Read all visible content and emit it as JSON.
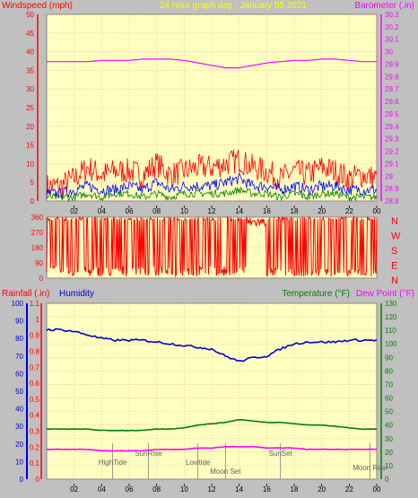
{
  "header": {
    "left_label": "Windspeed (mph)",
    "center_label": "24 hour graph day : January 05 2021",
    "right_label": "Barometer (.in)"
  },
  "lower_header": {
    "rain_label": "Rainfall (.in)",
    "humidity_label": "Humidity",
    "temperature_label": "Temperature (°F)",
    "dewpoint_label": "Dew Point (°F)"
  },
  "colors": {
    "plot_bg": "#ffffc0",
    "grid": "#ff9a9a",
    "axis_red": "#ff0000",
    "barometer": "#ff00ff",
    "humidity": "#0000cc",
    "temperature": "#008000",
    "dewpoint": "#ff00ff",
    "gust": "#ff0000",
    "average": "#0000ff",
    "lull": "#008000"
  },
  "x_ticks": [
    "02",
    "04",
    "06",
    "08",
    "10",
    "12",
    "14",
    "16",
    "18",
    "20",
    "22",
    "00"
  ],
  "chart_data": [
    {
      "type": "line",
      "title": "24 hour graph day : January 05 2021",
      "x_hours": [
        0,
        1,
        2,
        3,
        4,
        5,
        6,
        7,
        8,
        9,
        10,
        11,
        12,
        13,
        14,
        15,
        16,
        17,
        18,
        19,
        20,
        21,
        22,
        23,
        24
      ],
      "series": [
        {
          "name": "Windspeed (mph)",
          "axis": "left",
          "ylim": [
            0,
            50
          ],
          "gust_peak": [
            4,
            4,
            6,
            9,
            7,
            8,
            8,
            7,
            10,
            7,
            8,
            9,
            9,
            10,
            11,
            9,
            8,
            6,
            8,
            7,
            9,
            8,
            6,
            7,
            6
          ],
          "average": [
            2,
            2,
            3,
            4,
            3,
            3,
            4,
            3,
            5,
            3,
            4,
            4,
            4,
            5,
            6,
            4,
            4,
            3,
            4,
            3,
            4,
            4,
            3,
            3,
            3
          ],
          "lull": [
            1,
            1,
            1,
            2,
            1,
            2,
            2,
            1,
            2,
            1,
            2,
            2,
            2,
            2,
            3,
            2,
            2,
            1,
            2,
            1,
            2,
            2,
            1,
            1,
            1
          ]
        },
        {
          "name": "Barometer (.in)",
          "axis": "right",
          "ylim": [
            28.8,
            30.3
          ],
          "values": [
            29.92,
            29.92,
            29.92,
            29.92,
            29.93,
            29.93,
            29.93,
            29.94,
            29.94,
            29.94,
            29.93,
            29.91,
            29.89,
            29.87,
            29.87,
            29.89,
            29.91,
            29.92,
            29.93,
            29.93,
            29.94,
            29.94,
            29.93,
            29.92,
            29.92
          ]
        }
      ],
      "left_ticks": [
        "0",
        "5",
        "10",
        "15",
        "20",
        "25",
        "30",
        "35",
        "40",
        "45",
        "50"
      ],
      "right_ticks": [
        "28.8",
        "28.9",
        "29",
        "29.1",
        "29.2",
        "29.3",
        "29.4",
        "29.5",
        "29.6",
        "29.7",
        "29.8",
        "29.9",
        "30",
        "30.1",
        "30.2",
        "30.3"
      ]
    },
    {
      "type": "line",
      "name": "Wind direction",
      "ylim": [
        0,
        360
      ],
      "y_ticks": [
        "0",
        "90",
        "180",
        "270",
        "360"
      ],
      "direction_labels": [
        "N",
        "W",
        "S",
        "E",
        "N"
      ]
    },
    {
      "type": "line",
      "x_hours": [
        0,
        1,
        2,
        3,
        4,
        5,
        6,
        7,
        8,
        9,
        10,
        11,
        12,
        13,
        14,
        15,
        16,
        17,
        18,
        19,
        20,
        21,
        22,
        23,
        24
      ],
      "series": [
        {
          "name": "Humidity",
          "axis": "humidity",
          "ylim": [
            0,
            100
          ],
          "values": [
            85,
            85,
            84,
            82,
            80,
            79,
            79,
            79,
            78,
            77,
            76,
            75,
            74,
            70,
            67,
            69,
            70,
            74,
            77,
            78,
            78,
            78,
            79,
            79,
            79
          ]
        },
        {
          "name": "Temperature (°F)",
          "axis": "temperature",
          "ylim": [
            0,
            130
          ],
          "values": [
            37,
            37,
            37,
            37,
            36,
            36,
            36,
            36,
            37,
            37,
            38,
            40,
            41,
            42,
            44,
            43,
            42,
            42,
            41,
            40,
            40,
            39,
            38,
            37,
            37
          ]
        },
        {
          "name": "Dew Point (°F)",
          "axis": "temperature",
          "ylim": [
            0,
            130
          ],
          "values": [
            22,
            22,
            22,
            22,
            21,
            21,
            21,
            21,
            22,
            22,
            22,
            23,
            23,
            24,
            24,
            24,
            23,
            23,
            23,
            22,
            22,
            22,
            22,
            22,
            22
          ]
        }
      ],
      "rain_ticks": [
        "0",
        "0.1",
        "0.2",
        "0.3",
        "0.4",
        "0.5",
        "0.6",
        "0.7",
        "0.8",
        "0.9",
        "1",
        "1.1"
      ],
      "humidity_ticks": [
        "0",
        "10",
        "20",
        "30",
        "40",
        "50",
        "60",
        "70",
        "80",
        "90",
        "100"
      ],
      "temperature_ticks": [
        "0",
        "10",
        "20",
        "30",
        "40",
        "50",
        "60",
        "70",
        "80",
        "90",
        "100",
        "110",
        "120",
        "130"
      ],
      "events": [
        {
          "label": "HighTide",
          "hour": 4.8
        },
        {
          "label": "SunRise",
          "hour": 7.4
        },
        {
          "label": "Lowtide",
          "hour": 11.0
        },
        {
          "label": "Moon Set",
          "hour": 13.0
        },
        {
          "label": "SunSet",
          "hour": 17.0
        },
        {
          "label": "Moon Rise",
          "hour": 23.5
        }
      ]
    }
  ]
}
